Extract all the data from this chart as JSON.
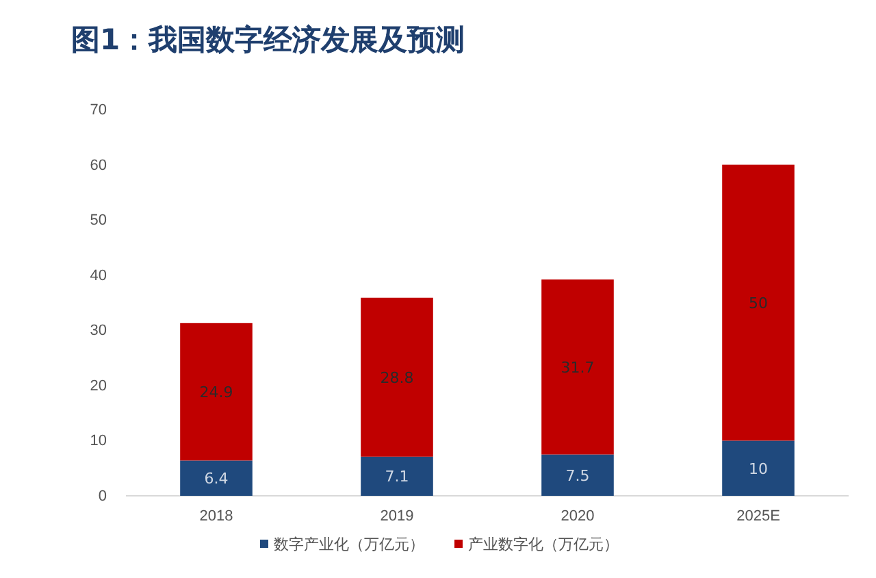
{
  "chart_data": {
    "type": "bar",
    "title": "图1：我国数字经济发展及预测",
    "categories": [
      "2018",
      "2019",
      "2020",
      "2025E"
    ],
    "stacked": true,
    "series": [
      {
        "name": "数字产业化（万亿元）",
        "color": "#1f497d",
        "values": [
          6.4,
          7.1,
          7.5,
          10
        ]
      },
      {
        "name": "产业数字化（万亿元）",
        "color": "#c00000",
        "values": [
          24.9,
          28.8,
          31.7,
          50
        ]
      }
    ],
    "ylim": [
      0,
      70
    ],
    "yticks": [
      0,
      10,
      20,
      30,
      40,
      50,
      60,
      70
    ],
    "data_labels": true,
    "grid": false,
    "legend": "bottom"
  }
}
